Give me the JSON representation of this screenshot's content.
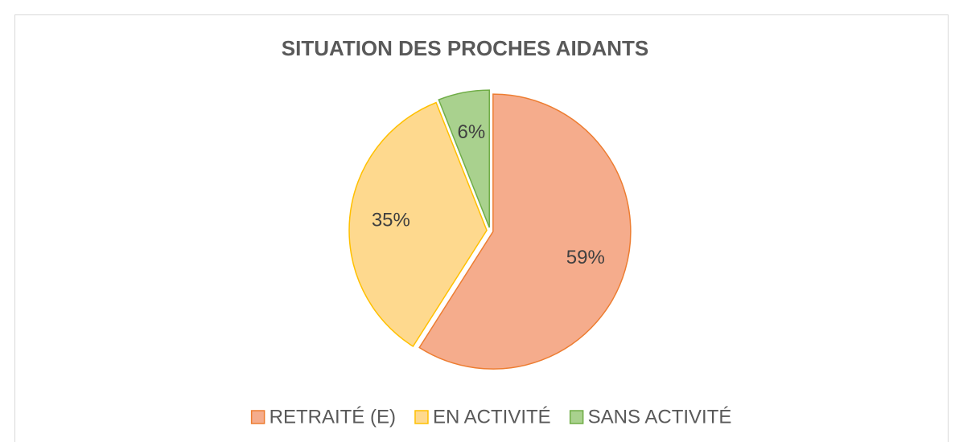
{
  "chart_data": {
    "type": "pie",
    "title": "SITUATION DES PROCHES AIDANTS",
    "categories": [
      "RETRAITÉ (E)",
      "EN ACTIVITÉ",
      "SANS ACTIVITÉ"
    ],
    "values": [
      59,
      35,
      6
    ],
    "value_labels": [
      "59%",
      "35%",
      "6%"
    ],
    "colors": [
      "#f5ac8c",
      "#fed98e",
      "#a9d18e"
    ],
    "edge_colors": [
      "#ed7d31",
      "#ffc000",
      "#70ad47"
    ],
    "legend": "bottom"
  }
}
